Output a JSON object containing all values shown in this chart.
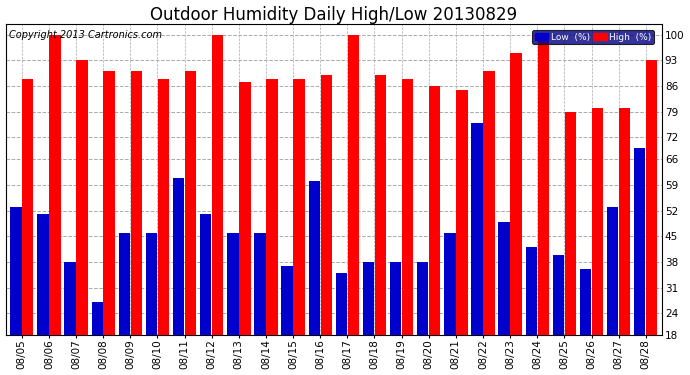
{
  "title": "Outdoor Humidity Daily High/Low 20130829",
  "copyright": "Copyright 2013 Cartronics.com",
  "dates": [
    "08/05",
    "08/06",
    "08/07",
    "08/08",
    "08/09",
    "08/10",
    "08/11",
    "08/12",
    "08/13",
    "08/14",
    "08/15",
    "08/16",
    "08/17",
    "08/18",
    "08/19",
    "08/20",
    "08/21",
    "08/22",
    "08/23",
    "08/24",
    "08/25",
    "08/26",
    "08/27",
    "08/28"
  ],
  "high": [
    88,
    100,
    93,
    90,
    90,
    88,
    90,
    100,
    87,
    88,
    88,
    89,
    100,
    89,
    88,
    86,
    85,
    90,
    95,
    100,
    79,
    80,
    80,
    93
  ],
  "low": [
    53,
    51,
    38,
    27,
    46,
    46,
    61,
    51,
    46,
    46,
    37,
    60,
    35,
    38,
    38,
    38,
    46,
    76,
    49,
    42,
    40,
    36,
    53,
    69
  ],
  "high_color": "#ff0000",
  "low_color": "#0000cc",
  "bg_color": "#ffffff",
  "ylabel_color": "#000000",
  "yticks": [
    18,
    24,
    31,
    38,
    45,
    52,
    59,
    66,
    72,
    79,
    86,
    93,
    100
  ],
  "ymin": 18,
  "ymax": 103,
  "grid_color": "#aaaaaa",
  "legend_low_label": "Low  (%)",
  "legend_high_label": "High  (%)",
  "title_fontsize": 12,
  "copyright_fontsize": 7,
  "tick_fontsize": 7.5,
  "bar_width": 0.42,
  "bar_gap": 0.02
}
